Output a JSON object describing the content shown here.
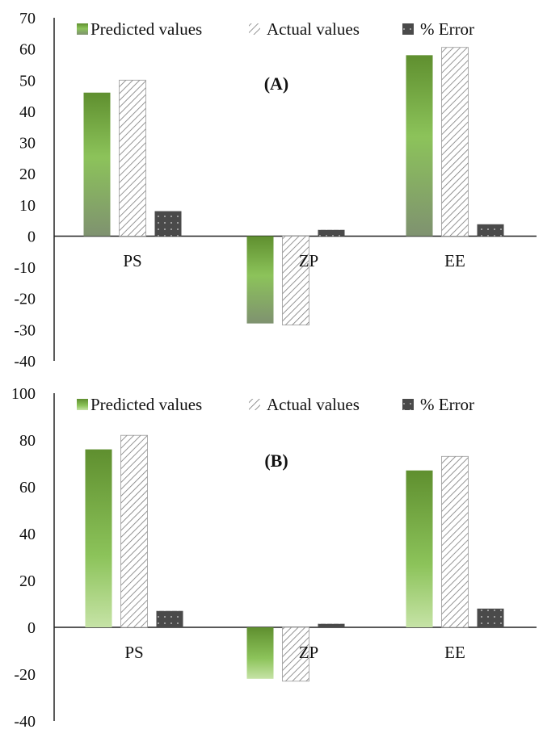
{
  "chart_data": [
    {
      "type": "bar",
      "title": "(A)",
      "categories": [
        "PS",
        "ZP",
        "EE"
      ],
      "series": [
        {
          "name": "Predicted values",
          "values": [
            46,
            -28,
            58
          ]
        },
        {
          "name": "Actual values",
          "values": [
            50,
            -28.5,
            60.5
          ]
        },
        {
          "name": "% Error",
          "values": [
            8,
            2,
            3.8
          ]
        }
      ],
      "ylim": [
        -40,
        70
      ],
      "yticks": [
        70,
        60,
        50,
        40,
        30,
        20,
        10,
        0,
        -10,
        -20,
        -30,
        -40
      ],
      "xlabel": "",
      "ylabel": "",
      "legend": "top"
    },
    {
      "type": "bar",
      "title": "(B)",
      "categories": [
        "PS",
        "ZP",
        "EE"
      ],
      "series": [
        {
          "name": "Predicted values",
          "values": [
            76,
            -22,
            67
          ]
        },
        {
          "name": "Actual values",
          "values": [
            82,
            -23,
            73
          ]
        },
        {
          "name": "% Error",
          "values": [
            7,
            1.5,
            8
          ]
        }
      ],
      "ylim": [
        -40,
        100
      ],
      "yticks": [
        100,
        80,
        60,
        40,
        20,
        0,
        -20,
        -40
      ],
      "xlabel": "",
      "ylabel": "",
      "legend": "top"
    }
  ],
  "colors": {
    "predicted_top": "#5f8f2f",
    "predicted_mid": "#8cc35a",
    "predicted_bottom": "#7f9270",
    "predicted_b_bottom": "#c6e3a6",
    "actual_stroke": "#777777",
    "error_fill": "#4a4a4a",
    "axis": "#222222"
  }
}
